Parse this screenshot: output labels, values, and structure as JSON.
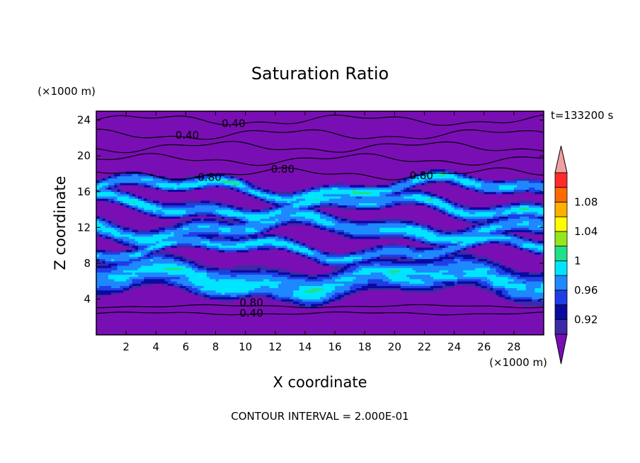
{
  "chart_data": {
    "type": "heatmap",
    "title": "Saturation Ratio",
    "xlabel": "X coordinate",
    "ylabel": "Z coordinate",
    "x_unit": "(×1000 m)",
    "y_unit": "(×1000 m)",
    "xlim": [
      0,
      30
    ],
    "ylim": [
      0,
      25
    ],
    "x_ticks": [
      "2",
      "4",
      "6",
      "8",
      "10",
      "12",
      "14",
      "16",
      "18",
      "20",
      "22",
      "24",
      "26",
      "28"
    ],
    "y_ticks": [
      "4",
      "8",
      "12",
      "16",
      "20",
      "24"
    ],
    "time_label": "t=133200 s",
    "footer": "CONTOUR INTERVAL = 2.000E-01",
    "colorbar": {
      "tick_labels": [
        "0.92",
        "0.96",
        "1",
        "1.04",
        "1.08"
      ],
      "tick_values": [
        0.92,
        0.96,
        1.0,
        1.04,
        1.08
      ],
      "levels": [
        0.9,
        0.92,
        0.94,
        0.96,
        0.98,
        1.0,
        1.02,
        1.04,
        1.06,
        1.08,
        1.1
      ],
      "colors": [
        "#3d2aa6",
        "#0a0aa0",
        "#1f3ee6",
        "#1e88ff",
        "#00e5ff",
        "#1fe08a",
        "#96e61e",
        "#ffff00",
        "#ffb000",
        "#ff6a00",
        "#ff2a2a"
      ],
      "under_color": "#7a0eb5",
      "over_color": "#f0a0a0"
    },
    "contour_labels": [
      {
        "text": "0.40",
        "x": 9.2,
        "z": 23.6
      },
      {
        "text": "0.40",
        "x": 6.1,
        "z": 22.3
      },
      {
        "text": "0.80",
        "x": 12.5,
        "z": 18.5
      },
      {
        "text": "0.80",
        "x": 7.6,
        "z": 17.6
      },
      {
        "text": "0.80",
        "x": 21.8,
        "z": 17.8
      },
      {
        "text": "0.80",
        "x": 10.4,
        "z": 3.6
      },
      {
        "text": "0.40",
        "x": 10.4,
        "z": 2.4
      }
    ],
    "contour_lines_z": [
      24.0,
      22.4,
      21.0,
      19.6,
      18.0,
      3.2,
      2.4
    ],
    "cloud_layers": [
      {
        "z_center": 16.4,
        "thickness": 1.6,
        "class": "near_saturated"
      },
      {
        "z_center": 14.4,
        "thickness": 1.8,
        "class": "near_saturated"
      },
      {
        "z_center": 12.0,
        "thickness": 2.2,
        "class": "near_saturated"
      },
      {
        "z_center": 9.6,
        "thickness": 1.6,
        "class": "near_saturated"
      },
      {
        "z_center": 6.2,
        "thickness": 3.8,
        "class": "near_saturated"
      }
    ]
  }
}
